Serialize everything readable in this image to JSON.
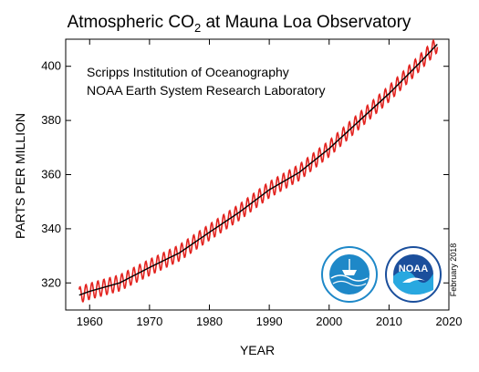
{
  "chart_data": {
    "type": "line",
    "title": {
      "main": "Atmospheric CO",
      "sub": "2",
      "rest": " at Mauna Loa Observatory"
    },
    "subtitle_lines": [
      "Scripps Institution of Oceanography",
      "NOAA Earth System Research Laboratory"
    ],
    "xlabel": "YEAR",
    "ylabel": "PARTS PER MILLION",
    "xlim": [
      1956,
      2020
    ],
    "ylim": [
      310,
      410
    ],
    "x_ticks": [
      1960,
      1970,
      1980,
      1990,
      2000,
      2010,
      2020
    ],
    "y_ticks": [
      320,
      340,
      360,
      380,
      400
    ],
    "series": [
      {
        "color": "#e3231f",
        "style": "monthly-seasonal"
      },
      {
        "color": "#000000",
        "style": "annual-trend"
      }
    ],
    "trend_anchors": {
      "x": [
        1958,
        1960,
        1965,
        1970,
        1975,
        1980,
        1985,
        1990,
        1995,
        2000,
        2005,
        2010,
        2015,
        2018
      ],
      "y": [
        315.3,
        316.9,
        320.0,
        325.7,
        331.1,
        338.7,
        346.1,
        354.4,
        360.8,
        369.6,
        379.8,
        389.9,
        401.0,
        408.0
      ]
    },
    "seasonal_amplitude": 3.0,
    "date_stamp": "February 2018",
    "grid": false
  },
  "logos": [
    {
      "name": "scripps-logo-icon",
      "color": "#1e88c8"
    },
    {
      "name": "noaa-logo-icon",
      "color": "#1b4f9c",
      "text": "NOAA"
    }
  ]
}
